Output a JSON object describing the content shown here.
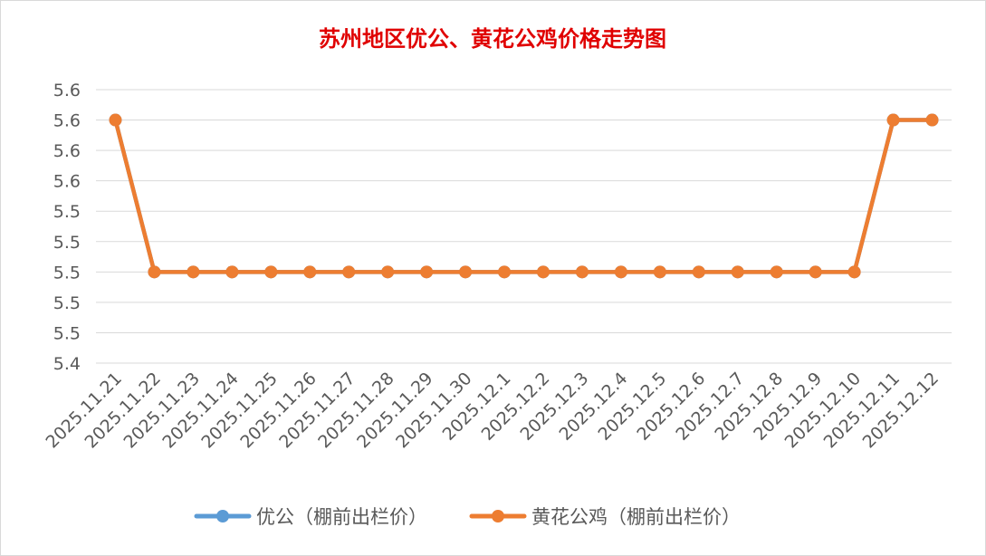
{
  "chart_data": {
    "type": "line",
    "title": "苏州地区优公、黄花公鸡价格走势图",
    "xlabel": "",
    "ylabel": "",
    "categories": [
      "2025.11.21",
      "2025.11.22",
      "2025.11.23",
      "2025.11.24",
      "2025.11.25",
      "2025.11.26",
      "2025.11.27",
      "2025.11.28",
      "2025.11.29",
      "2025.11.30",
      "2025.12.1",
      "2025.12.2",
      "2025.12.3",
      "2025.12.4",
      "2025.12.5",
      "2025.12.6",
      "2025.12.7",
      "2025.12.8",
      "2025.12.9",
      "2025.12.10",
      "2025.12.11",
      "2025.12.12"
    ],
    "ylim": [
      5.4,
      5.58
    ],
    "yticks": [
      5.4,
      5.42,
      5.44,
      5.46,
      5.48,
      5.5,
      5.52,
      5.54,
      5.56,
      5.58
    ],
    "ytick_labels": [
      "5.4",
      "5.5",
      "5.5",
      "5.5",
      "5.5",
      "5.5",
      "5.6",
      "5.6",
      "5.6",
      "5.6"
    ],
    "grid": true,
    "legend_position": "bottom",
    "series": [
      {
        "name": "优公（棚前出栏价）",
        "color": "#5b9bd5",
        "values": [
          5.56,
          5.46,
          5.46,
          5.46,
          5.46,
          5.46,
          5.46,
          5.46,
          5.46,
          5.46,
          5.46,
          5.46,
          5.46,
          5.46,
          5.46,
          5.46,
          5.46,
          5.46,
          5.46,
          5.46,
          5.56,
          5.56
        ]
      },
      {
        "name": "黄花公鸡（棚前出栏价）",
        "color": "#ed7d31",
        "values": [
          5.56,
          5.46,
          5.46,
          5.46,
          5.46,
          5.46,
          5.46,
          5.46,
          5.46,
          5.46,
          5.46,
          5.46,
          5.46,
          5.46,
          5.46,
          5.46,
          5.46,
          5.46,
          5.46,
          5.46,
          5.56,
          5.56
        ]
      }
    ]
  }
}
